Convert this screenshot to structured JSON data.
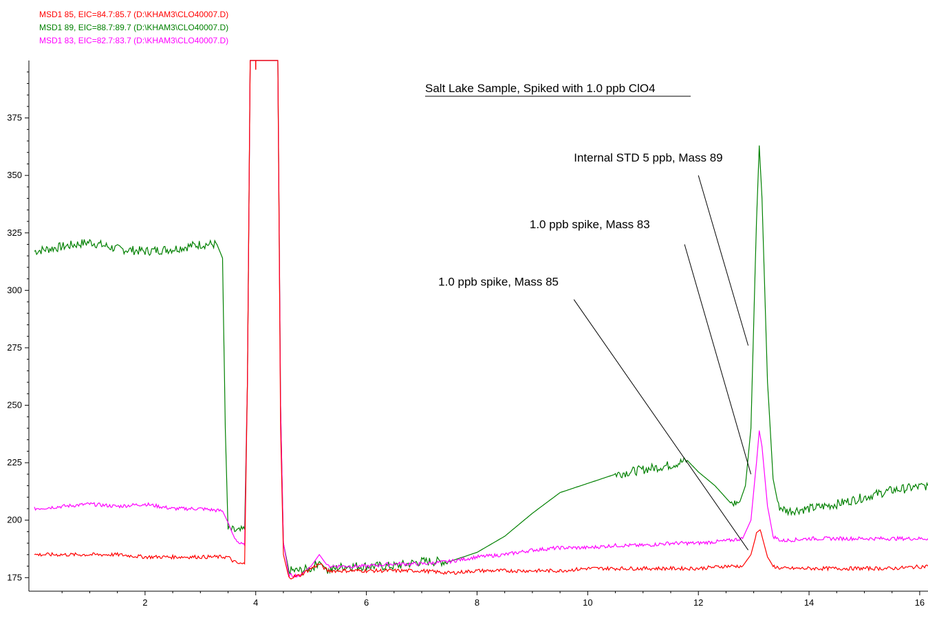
{
  "legend": [
    {
      "text": "MSD1 85, EIC=84.7:85.7 (D:\\KHAM3\\CLO40007.D)",
      "color": "#ff0000"
    },
    {
      "text": "MSD1 89, EIC=88.7:89.7 (D:\\KHAM3\\CLO40007.D)",
      "color": "#008000"
    },
    {
      "text": "MSD1 83, EIC=82.7:83.7 (D:\\KHAM3\\CLO40007.D)",
      "color": "#ff00ff"
    }
  ],
  "chart_data": {
    "type": "line",
    "title": "Salt Lake Sample, Spiked with 1.0 ppb ClO4",
    "xlabel": "",
    "ylabel": "",
    "xlim": [
      0,
      16.15
    ],
    "ylim": [
      170,
      400
    ],
    "x_ticks": [
      "2",
      "4",
      "6",
      "8",
      "10",
      "12",
      "14",
      "16"
    ],
    "y_ticks": [
      "175",
      "200",
      "225",
      "250",
      "275",
      "300",
      "325",
      "350",
      "375"
    ],
    "grid": false,
    "series": [
      {
        "name": "MSD1 89",
        "color": "#008000",
        "points": [
          [
            0,
            317
          ],
          [
            0.5,
            319
          ],
          [
            1,
            321
          ],
          [
            1.5,
            318
          ],
          [
            2,
            317
          ],
          [
            2.5,
            318
          ],
          [
            3,
            320
          ],
          [
            3.3,
            320
          ],
          [
            3.4,
            314
          ],
          [
            3.45,
            240
          ],
          [
            3.5,
            196
          ],
          [
            3.7,
            195
          ],
          [
            3.8,
            196
          ],
          [
            3.85,
            260
          ],
          [
            3.9,
            400
          ],
          [
            4.4,
            400
          ],
          [
            4.45,
            250
          ],
          [
            4.5,
            190
          ],
          [
            4.6,
            178
          ],
          [
            4.8,
            178
          ],
          [
            5.0,
            179
          ],
          [
            5.15,
            182
          ],
          [
            5.3,
            178
          ],
          [
            5.6,
            180
          ],
          [
            6,
            180
          ],
          [
            6.5,
            180
          ],
          [
            7,
            182
          ],
          [
            7.5,
            182
          ],
          [
            8,
            186
          ],
          [
            8.5,
            193
          ],
          [
            9,
            203
          ],
          [
            9.5,
            212
          ],
          [
            10,
            216
          ],
          [
            10.5,
            220
          ],
          [
            11,
            222
          ],
          [
            11.5,
            224
          ],
          [
            11.8,
            226
          ],
          [
            12,
            221
          ],
          [
            12.3,
            215
          ],
          [
            12.6,
            207
          ],
          [
            12.75,
            208
          ],
          [
            12.85,
            215
          ],
          [
            12.95,
            240
          ],
          [
            13.05,
            330
          ],
          [
            13.1,
            363
          ],
          [
            13.15,
            340
          ],
          [
            13.25,
            260
          ],
          [
            13.35,
            218
          ],
          [
            13.45,
            206
          ],
          [
            13.6,
            204
          ],
          [
            14,
            205
          ],
          [
            14.5,
            207
          ],
          [
            15,
            210
          ],
          [
            15.5,
            213
          ],
          [
            16.15,
            215
          ]
        ]
      },
      {
        "name": "MSD1 83",
        "color": "#ff00ff",
        "points": [
          [
            0,
            205
          ],
          [
            0.5,
            206
          ],
          [
            1,
            207
          ],
          [
            1.5,
            206
          ],
          [
            2,
            207
          ],
          [
            2.5,
            205
          ],
          [
            3,
            205
          ],
          [
            3.4,
            204
          ],
          [
            3.5,
            199
          ],
          [
            3.6,
            193
          ],
          [
            3.7,
            190
          ],
          [
            3.8,
            189
          ],
          [
            3.85,
            260
          ],
          [
            3.9,
            400
          ],
          [
            4.4,
            400
          ],
          [
            4.45,
            250
          ],
          [
            4.5,
            190
          ],
          [
            4.6,
            176
          ],
          [
            4.8,
            176
          ],
          [
            5.0,
            180
          ],
          [
            5.15,
            185
          ],
          [
            5.3,
            180
          ],
          [
            5.6,
            180
          ],
          [
            6,
            180
          ],
          [
            6.5,
            181
          ],
          [
            7,
            181
          ],
          [
            7.5,
            182
          ],
          [
            8,
            184
          ],
          [
            8.5,
            185
          ],
          [
            9,
            187
          ],
          [
            9.5,
            188
          ],
          [
            10,
            188
          ],
          [
            10.5,
            189
          ],
          [
            11,
            189
          ],
          [
            11.5,
            190
          ],
          [
            12,
            190
          ],
          [
            12.5,
            191
          ],
          [
            12.8,
            192
          ],
          [
            12.95,
            200
          ],
          [
            13.05,
            225
          ],
          [
            13.1,
            239
          ],
          [
            13.15,
            232
          ],
          [
            13.25,
            206
          ],
          [
            13.35,
            193
          ],
          [
            13.5,
            191
          ],
          [
            14,
            192
          ],
          [
            14.5,
            192
          ],
          [
            15,
            192
          ],
          [
            15.5,
            192
          ],
          [
            16.15,
            192
          ]
        ]
      },
      {
        "name": "MSD1 85",
        "color": "#ff0000",
        "points": [
          [
            0,
            185
          ],
          [
            0.5,
            185
          ],
          [
            1,
            185
          ],
          [
            1.5,
            185
          ],
          [
            2,
            184
          ],
          [
            2.5,
            184
          ],
          [
            3,
            184
          ],
          [
            3.5,
            184
          ],
          [
            3.6,
            182
          ],
          [
            3.7,
            181
          ],
          [
            3.8,
            181
          ],
          [
            3.85,
            260
          ],
          [
            3.9,
            400
          ],
          [
            4.4,
            400
          ],
          [
            4.45,
            240
          ],
          [
            4.5,
            185
          ],
          [
            4.6,
            175
          ],
          [
            4.8,
            176
          ],
          [
            5.0,
            179
          ],
          [
            5.15,
            181
          ],
          [
            5.3,
            178
          ],
          [
            5.6,
            178
          ],
          [
            6,
            178
          ],
          [
            6.5,
            178
          ],
          [
            7,
            178
          ],
          [
            7.5,
            177
          ],
          [
            8,
            178
          ],
          [
            8.5,
            178
          ],
          [
            9,
            178
          ],
          [
            9.5,
            178
          ],
          [
            10,
            179
          ],
          [
            10.5,
            179
          ],
          [
            11,
            179
          ],
          [
            11.5,
            179
          ],
          [
            12,
            179
          ],
          [
            12.5,
            180
          ],
          [
            12.8,
            180
          ],
          [
            12.95,
            185
          ],
          [
            13.05,
            194
          ],
          [
            13.1,
            196
          ],
          [
            13.15,
            193
          ],
          [
            13.25,
            184
          ],
          [
            13.35,
            180
          ],
          [
            13.5,
            179
          ],
          [
            14,
            179
          ],
          [
            14.5,
            179
          ],
          [
            15,
            179
          ],
          [
            15.5,
            179
          ],
          [
            16.15,
            180
          ]
        ]
      }
    ],
    "annotations": [
      {
        "text": "Internal STD 5 ppb, Mass 89",
        "x": 9.75,
        "y": 356,
        "target_x": 12.9,
        "target_y": 276,
        "from_x": 12.0,
        "from_y": 350
      },
      {
        "text": "1.0 ppb spike, Mass 83",
        "x": 8.95,
        "y": 327,
        "target_x": 12.95,
        "target_y": 220,
        "from_x": 11.75,
        "from_y": 320
      },
      {
        "text": "1.0 ppb spike, Mass 85",
        "x": 7.3,
        "y": 302,
        "target_x": 12.9,
        "target_y": 187,
        "from_x": 9.75,
        "from_y": 296
      }
    ]
  }
}
